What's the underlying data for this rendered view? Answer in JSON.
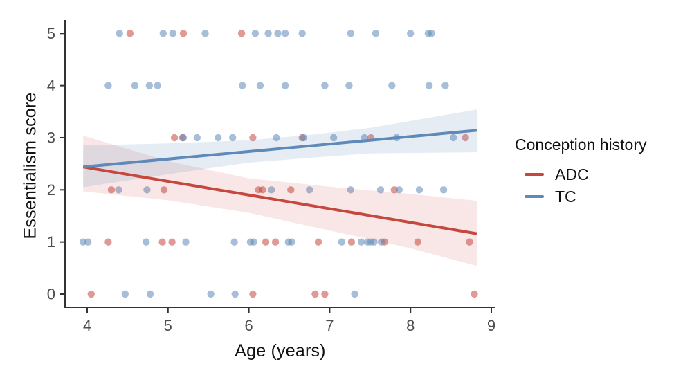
{
  "chart_data": {
    "type": "scatter",
    "title": "",
    "xlabel": "Age (years)",
    "ylabel": "Essentialism score",
    "x_ticks": [
      4,
      5,
      6,
      7,
      8,
      9
    ],
    "y_ticks": [
      0,
      1,
      2,
      3,
      4,
      5
    ],
    "xlim": [
      3.73,
      9.04
    ],
    "ylim": [
      -0.25,
      5.26
    ],
    "grid": false,
    "legend": {
      "title": "Conception history",
      "position": "right",
      "entries": [
        {
          "label": "ADC",
          "color": "#c6473e"
        },
        {
          "label": "TC",
          "color": "#5f89b8"
        }
      ]
    },
    "series": [
      {
        "name": "ADC",
        "color": "#c6473e",
        "point_opacity": 0.55,
        "ribbon_opacity": 0.13,
        "points": [
          [
            4.53,
            5
          ],
          [
            5.19,
            5
          ],
          [
            5.91,
            5
          ],
          [
            5.08,
            3
          ],
          [
            5.18,
            3
          ],
          [
            6.05,
            3
          ],
          [
            6.66,
            3
          ],
          [
            7.51,
            3
          ],
          [
            8.68,
            3
          ],
          [
            4.3,
            2
          ],
          [
            4.95,
            2
          ],
          [
            6.12,
            2
          ],
          [
            6.17,
            2
          ],
          [
            6.52,
            2
          ],
          [
            7.8,
            2
          ],
          [
            4.26,
            1
          ],
          [
            4.93,
            1
          ],
          [
            5.05,
            1
          ],
          [
            6.21,
            1
          ],
          [
            6.33,
            1
          ],
          [
            6.86,
            1
          ],
          [
            7.27,
            1
          ],
          [
            7.68,
            1
          ],
          [
            8.09,
            1
          ],
          [
            8.73,
            1
          ],
          [
            4.05,
            0
          ],
          [
            6.05,
            0
          ],
          [
            6.82,
            0
          ],
          [
            6.94,
            0
          ],
          [
            8.79,
            0
          ]
        ],
        "trend": [
          [
            3.95,
            2.44
          ],
          [
            8.82,
            1.16
          ]
        ],
        "ribbon": [
          [
            3.95,
            1.97,
            3.04
          ],
          [
            5.0,
            1.8,
            2.55
          ],
          [
            6.0,
            1.56,
            2.22
          ],
          [
            7.0,
            1.22,
            2.06
          ],
          [
            8.0,
            0.88,
            1.92
          ],
          [
            8.82,
            0.54,
            1.79
          ]
        ]
      },
      {
        "name": "TC",
        "color": "#5f89b8",
        "point_opacity": 0.55,
        "ribbon_opacity": 0.16,
        "points": [
          [
            4.4,
            5
          ],
          [
            4.94,
            5
          ],
          [
            5.06,
            5
          ],
          [
            5.46,
            5
          ],
          [
            6.08,
            5
          ],
          [
            6.24,
            5
          ],
          [
            6.36,
            5
          ],
          [
            6.45,
            5
          ],
          [
            6.66,
            5
          ],
          [
            7.26,
            5
          ],
          [
            7.57,
            5
          ],
          [
            8.0,
            5
          ],
          [
            8.22,
            5
          ],
          [
            8.26,
            5
          ],
          [
            4.26,
            4
          ],
          [
            4.59,
            4
          ],
          [
            4.77,
            4
          ],
          [
            4.87,
            4
          ],
          [
            5.92,
            4
          ],
          [
            6.14,
            4
          ],
          [
            6.45,
            4
          ],
          [
            6.94,
            4
          ],
          [
            7.24,
            4
          ],
          [
            7.77,
            4
          ],
          [
            8.23,
            4
          ],
          [
            8.43,
            4
          ],
          [
            5.19,
            3
          ],
          [
            5.36,
            3
          ],
          [
            5.62,
            3
          ],
          [
            5.8,
            3
          ],
          [
            6.34,
            3
          ],
          [
            6.68,
            3
          ],
          [
            7.05,
            3
          ],
          [
            7.43,
            3
          ],
          [
            7.83,
            3
          ],
          [
            8.53,
            3
          ],
          [
            4.39,
            2
          ],
          [
            4.74,
            2
          ],
          [
            6.28,
            2
          ],
          [
            6.75,
            2
          ],
          [
            7.26,
            2
          ],
          [
            7.63,
            2
          ],
          [
            7.86,
            2
          ],
          [
            8.11,
            2
          ],
          [
            8.41,
            2
          ],
          [
            3.95,
            1
          ],
          [
            4.01,
            1
          ],
          [
            4.73,
            1
          ],
          [
            5.22,
            1
          ],
          [
            5.82,
            1
          ],
          [
            6.02,
            1
          ],
          [
            6.06,
            1
          ],
          [
            6.49,
            1
          ],
          [
            6.53,
            1
          ],
          [
            7.15,
            1
          ],
          [
            7.39,
            1
          ],
          [
            7.47,
            1
          ],
          [
            7.51,
            1
          ],
          [
            7.55,
            1
          ],
          [
            7.64,
            1
          ],
          [
            4.47,
            0
          ],
          [
            4.78,
            0
          ],
          [
            5.53,
            0
          ],
          [
            5.83,
            0
          ],
          [
            7.31,
            0
          ]
        ],
        "trend": [
          [
            3.95,
            2.44
          ],
          [
            8.82,
            3.14
          ]
        ],
        "ribbon": [
          [
            3.95,
            2.05,
            2.85
          ],
          [
            5.0,
            2.3,
            2.89
          ],
          [
            6.0,
            2.52,
            2.95
          ],
          [
            6.8,
            2.62,
            3.06
          ],
          [
            7.5,
            2.7,
            3.19
          ],
          [
            8.82,
            2.72,
            3.54
          ]
        ]
      }
    ],
    "style": {
      "axis_color": "#333333",
      "tick_label_color": "#4d4d4d",
      "tick_font_size": 22,
      "point_radius": 5.2,
      "line_width": 4
    }
  }
}
